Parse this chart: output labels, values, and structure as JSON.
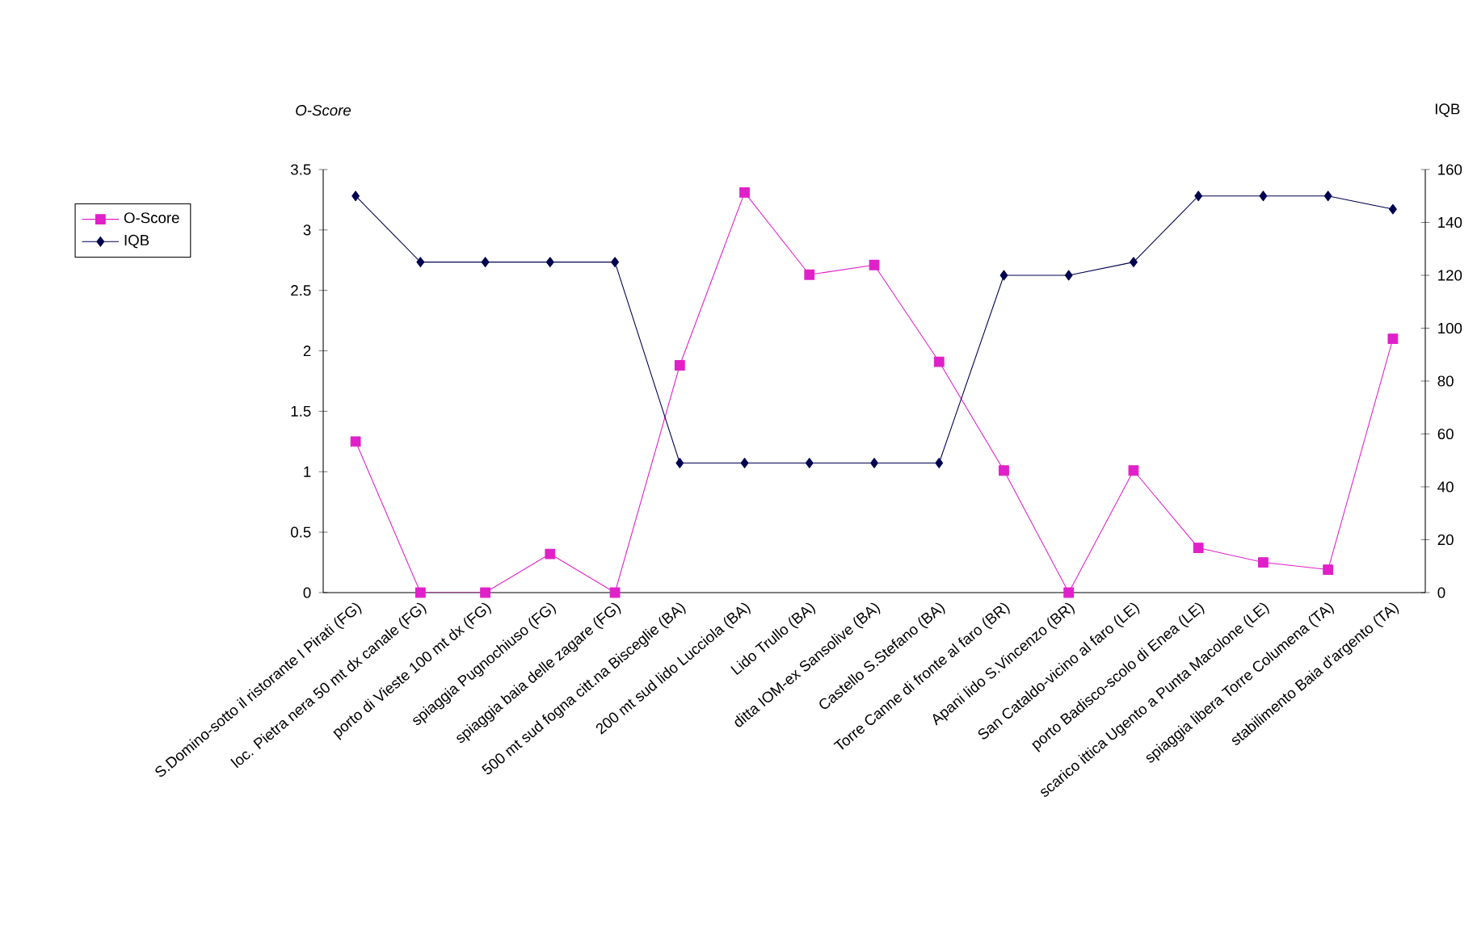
{
  "chart_data": {
    "type": "line",
    "ylabel": "O-Score",
    "y2label": "IQB",
    "legend": "left",
    "categories": [
      "S.Domino-sotto il ristorante I Pirati (FG)",
      "loc. Pietra nera 50 mt dx canale (FG)",
      "porto di Vieste 100 mt dx (FG)",
      "spiaggia Pugnochiuso (FG)",
      "spiaggia baia delle zagare (FG)",
      "500 mt sud fogna citt.na Bisceglie (BA)",
      "200 mt sud lido Lucciola (BA)",
      "Lido Trullo (BA)",
      "ditta IOM-ex Sansolive (BA)",
      "Castello S.Stefano (BA)",
      "Torre Canne di fronte al faro (BR)",
      "Apani lido S.Vincenzo (BR)",
      "San Cataldo-vicino al faro (LE)",
      "porto Badisco-scolo di Enea (LE)",
      "scarico ittica Ugento a Punta Macolone (LE)",
      "spiaggia libera Torre Columena (TA)",
      "stabilimento Baia d'argento (TA)"
    ],
    "series": [
      {
        "name": "O-Score",
        "color": "#e020c8",
        "marker": "square",
        "values": [
          1.25,
          0,
          0,
          0.32,
          0,
          1.88,
          3.31,
          2.63,
          2.71,
          1.91,
          1.01,
          0,
          1.01,
          0.37,
          0.25,
          0.19,
          2.1
        ]
      },
      {
        "name": "IQB",
        "color": "#000050",
        "marker": "diamond",
        "axis": "y2",
        "values": [
          150,
          125,
          125,
          125,
          125,
          49,
          49,
          49,
          49,
          49,
          120,
          120,
          125,
          150,
          150,
          150,
          145
        ]
      }
    ],
    "ylim": [
      0,
      3.5
    ],
    "yticks": [
      0,
      0.5,
      1,
      1.5,
      2,
      2.5,
      3,
      3.5
    ],
    "y2lim": [
      0,
      160
    ],
    "y2ticks": [
      0,
      20,
      40,
      60,
      80,
      100,
      120,
      140,
      160
    ]
  }
}
